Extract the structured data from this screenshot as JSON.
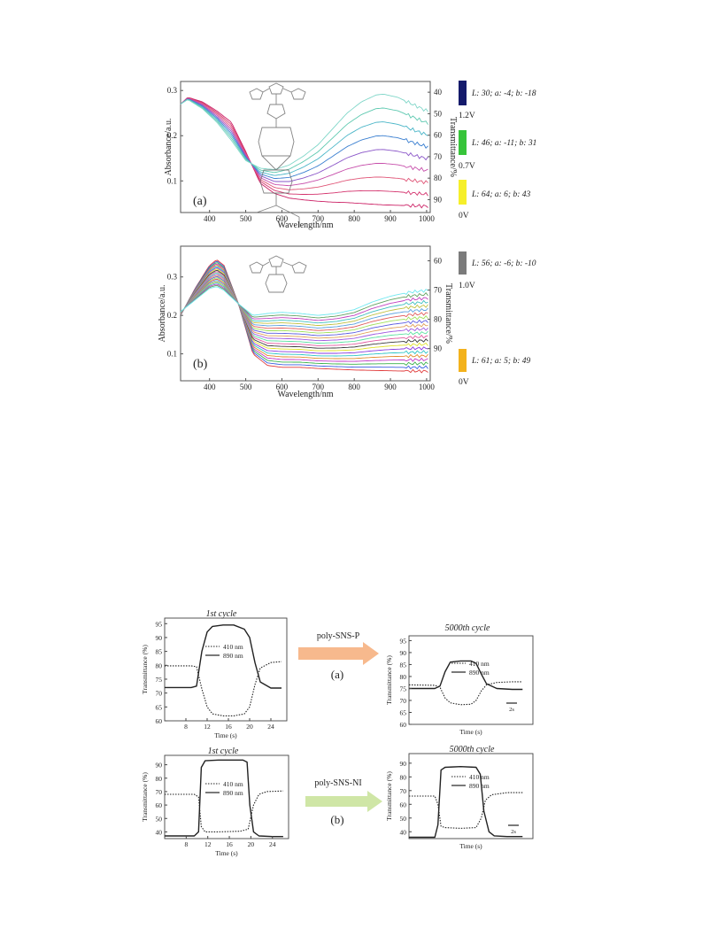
{
  "figure_top": {
    "panels": [
      {
        "label": "(a)",
        "xlabel": "Wavelength/nm",
        "ylabel": "Absorbance/a.u.",
        "y2label": "Transmittance/%",
        "xticks": [
          "400",
          "500",
          "600",
          "700",
          "800",
          "900",
          "1000"
        ],
        "yticks": [
          "0.1",
          "0.2",
          "0.3"
        ],
        "y2ticks": [
          "40",
          "50",
          "60",
          "70",
          "80",
          "90"
        ],
        "swatches": [
          {
            "color": "#141a6b",
            "lab": "L: 30; a: -4; b: -18",
            "voltage": "1.2V"
          },
          {
            "color": "#37c43a",
            "lab": "L: 46; a: -11; b: 31",
            "voltage": "0.7V"
          },
          {
            "color": "#f6ef2a",
            "lab": "L: 64; a: 6; b: 43",
            "voltage": "0V"
          }
        ]
      },
      {
        "label": "(b)",
        "xlabel": "Wavelength/nm",
        "ylabel": "Absorbance/a.u.",
        "y2label": "Transmittance/%",
        "xticks": [
          "400",
          "500",
          "600",
          "700",
          "800",
          "900",
          "1000"
        ],
        "yticks": [
          "0.1",
          "0.2",
          "0.3"
        ],
        "y2ticks": [
          "60",
          "70",
          "80",
          "90"
        ],
        "swatches": [
          {
            "color": "#7b7b7b",
            "lab": "L: 56; a: -6; b: -10",
            "voltage": "1.0V"
          },
          {
            "color": "#f3b21c",
            "lab": "L: 61; a: 5; b: 49",
            "voltage": "0V"
          }
        ]
      }
    ]
  },
  "chart_data": [
    {
      "type": "line",
      "panel": "(a)",
      "xlabel": "Wavelength/nm",
      "ylabel": "Absorbance/a.u.",
      "xlim": [
        320,
        1010
      ],
      "ylim": [
        0.03,
        0.32
      ],
      "grid": false,
      "series_count": 9,
      "curve_profile": {
        "wavelength": [
          320,
          340,
          380,
          420,
          460,
          500,
          540,
          580,
          620,
          660,
          700,
          740,
          780,
          820,
          860,
          880,
          920,
          960,
          1000
        ],
        "neutral": [
          0.27,
          0.285,
          0.275,
          0.255,
          0.23,
          0.165,
          0.095,
          0.072,
          0.062,
          0.058,
          0.055,
          0.053,
          0.052,
          0.05,
          0.048,
          0.047,
          0.046,
          0.045,
          0.044
        ],
        "oxidized": [
          0.27,
          0.28,
          0.26,
          0.23,
          0.19,
          0.145,
          0.128,
          0.125,
          0.135,
          0.155,
          0.18,
          0.215,
          0.25,
          0.275,
          0.29,
          0.292,
          0.285,
          0.27,
          0.255
        ]
      },
      "colors": [
        "#cc2266",
        "#d4336d",
        "#e05577",
        "#c64daa",
        "#8a55c8",
        "#3a7fd0",
        "#4bb6c8",
        "#5ec9b0",
        "#7fd6c8"
      ]
    },
    {
      "type": "line",
      "panel": "(b)",
      "xlabel": "Wavelength/nm",
      "ylabel": "Absorbance/a.u.",
      "xlim": [
        320,
        1010
      ],
      "ylim": [
        0.03,
        0.38
      ],
      "grid": false,
      "series_count": 22,
      "curve_profile": {
        "wavelength": [
          320,
          360,
          400,
          420,
          440,
          480,
          520,
          560,
          600,
          650,
          700,
          750,
          800,
          850,
          900,
          950,
          1000
        ],
        "neutral": [
          0.2,
          0.27,
          0.33,
          0.345,
          0.33,
          0.23,
          0.1,
          0.07,
          0.065,
          0.065,
          0.062,
          0.06,
          0.058,
          0.057,
          0.056,
          0.055,
          0.055
        ],
        "oxidized": [
          0.21,
          0.24,
          0.27,
          0.275,
          0.265,
          0.23,
          0.2,
          0.205,
          0.208,
          0.205,
          0.2,
          0.205,
          0.215,
          0.235,
          0.25,
          0.26,
          0.265
        ]
      },
      "colors": [
        "#e03a3a",
        "#3a5fe0",
        "#3ab04a",
        "#c43ac4",
        "#e08a2a",
        "#2ac4c4",
        "#8a3ae0",
        "#e0e02a",
        "#3a3a3a",
        "#e05aa0",
        "#5ae0a0",
        "#a05ae0",
        "#e0a05a",
        "#5a5ae0",
        "#a0e05a",
        "#e05a5a",
        "#5aa0e0",
        "#c0c040",
        "#40c0c0",
        "#c040c0",
        "#60a060",
        "#6fe8f0"
      ]
    },
    {
      "type": "line",
      "panel": "poly-SNS-P 1st cycle",
      "title": "1st cycle",
      "xlabel": "Time (s)",
      "ylabel": "Transmittance (%)",
      "xlim": [
        4,
        27
      ],
      "ylim": [
        60,
        97
      ],
      "xticks": [
        8,
        12,
        16,
        20,
        24
      ],
      "yticks": [
        60,
        65,
        70,
        75,
        80,
        85,
        90,
        95
      ],
      "series": [
        {
          "name": "410 nm",
          "style": "dotted",
          "x": [
            4,
            9,
            10,
            11,
            12,
            13,
            15,
            17,
            19,
            20,
            21,
            22,
            24,
            26
          ],
          "y": [
            79.8,
            79.8,
            79.5,
            71.5,
            65,
            62.5,
            61.8,
            61.8,
            62.5,
            65,
            73,
            79,
            81,
            81.3
          ]
        },
        {
          "name": "890 nm",
          "style": "solid",
          "x": [
            4,
            9,
            10,
            11,
            12,
            13,
            15,
            17,
            19,
            20,
            21,
            22,
            24,
            26
          ],
          "y": [
            72,
            72,
            72.5,
            85,
            92,
            94,
            94.5,
            94.5,
            93,
            90,
            81,
            74,
            71.8,
            71.8
          ]
        }
      ]
    },
    {
      "type": "line",
      "panel": "poly-SNS-P 5000th cycle",
      "title": "5000th cycle",
      "xlabel": "Time (s)",
      "ylabel": "Transmittance (%)",
      "xlim": [
        0,
        24
      ],
      "ylim": [
        60,
        97
      ],
      "yticks": [
        60,
        65,
        70,
        75,
        80,
        85,
        90,
        95
      ],
      "series": [
        {
          "name": "410 nm",
          "style": "dotted",
          "x": [
            0,
            5,
            6,
            7,
            8,
            10,
            12,
            13,
            14,
            15,
            17,
            20,
            22
          ],
          "y": [
            76.5,
            76.3,
            75.5,
            71,
            69,
            68.2,
            68.4,
            70,
            74,
            76.5,
            77.5,
            77.8,
            77.8
          ]
        },
        {
          "name": "890 nm",
          "style": "solid",
          "x": [
            0,
            5,
            6,
            7,
            8,
            10,
            12,
            13,
            14,
            15,
            17,
            20,
            22
          ],
          "y": [
            75,
            75,
            76,
            82,
            86,
            86.5,
            86.5,
            85.5,
            81,
            77,
            75,
            74.6,
            74.6
          ]
        }
      ],
      "scale_bar": "2s"
    },
    {
      "type": "line",
      "panel": "poly-SNS-NI 1st cycle",
      "title": "1st cycle",
      "xlabel": "Time (s)",
      "ylabel": "Transmittance (%)",
      "xlim": [
        4,
        27
      ],
      "ylim": [
        35,
        97
      ],
      "xticks": [
        8,
        12,
        16,
        20,
        24
      ],
      "yticks": [
        40,
        50,
        60,
        70,
        80,
        90
      ],
      "series": [
        {
          "name": "410 nm",
          "style": "dotted",
          "x": [
            4,
            9.5,
            10.3,
            10.8,
            11.5,
            14,
            18,
            19.5,
            20.5,
            21.5,
            23,
            26
          ],
          "y": [
            68,
            68,
            66,
            44,
            40,
            40,
            40.5,
            42,
            60,
            68,
            70,
            70.5
          ]
        },
        {
          "name": "890 nm",
          "style": "solid",
          "x": [
            4,
            9.5,
            10.3,
            10.8,
            11.5,
            14,
            18.5,
            19.3,
            19.8,
            20.5,
            21.5,
            24,
            26
          ],
          "y": [
            37,
            37,
            40,
            88,
            93,
            93.5,
            93.5,
            92,
            60,
            40,
            37,
            36.5,
            36.5
          ]
        }
      ]
    },
    {
      "type": "line",
      "panel": "poly-SNS-NI 5000th cycle",
      "title": "5000th cycle",
      "xlabel": "Time (s)",
      "ylabel": "Transmittance (%)",
      "xlim": [
        0,
        24
      ],
      "ylim": [
        35,
        97
      ],
      "yticks": [
        40,
        50,
        60,
        70,
        80,
        90
      ],
      "series": [
        {
          "name": "410 nm",
          "style": "dotted",
          "x": [
            0,
            5,
            5.6,
            6.2,
            7,
            10,
            13,
            14,
            14.8,
            16,
            19,
            22
          ],
          "y": [
            66,
            66,
            60,
            44,
            43,
            42.5,
            43,
            50,
            63,
            67,
            68.5,
            68.5
          ]
        },
        {
          "name": "890 nm",
          "style": "solid",
          "x": [
            0,
            5,
            5.6,
            6.2,
            7,
            10,
            13,
            13.8,
            14.5,
            15.5,
            16.5,
            19,
            22
          ],
          "y": [
            36,
            36,
            45,
            85,
            87,
            87.5,
            87,
            82,
            55,
            40,
            37,
            36.5,
            36.5
          ]
        }
      ],
      "scale_bar": "2s"
    }
  ],
  "figure_bottom": {
    "panel_titles": [
      "1st cycle",
      "5000th cycle",
      "1st cycle",
      "5000th cycle"
    ],
    "xlabel": "Time (s)",
    "ylabel": "Transmittance (%)",
    "legend": [
      "410 nm",
      "890 nm"
    ],
    "scale_bar": "2s",
    "arrows": [
      {
        "polymer": "poly-SNS-P",
        "label": "(a)",
        "color": "#f7b98d"
      },
      {
        "polymer": "poly-SNS-NI",
        "label": "(b)",
        "color": "#cfe6a6"
      }
    ],
    "xticks_p": [
      "8",
      "12",
      "16",
      "20",
      "24"
    ],
    "yticks_p": [
      "60",
      "65",
      "70",
      "75",
      "80",
      "85",
      "90",
      "95"
    ],
    "xticks_ni": [
      "8",
      "12",
      "16",
      "20",
      "24"
    ],
    "yticks_ni": [
      "40",
      "50",
      "60",
      "70",
      "80",
      "90"
    ]
  }
}
